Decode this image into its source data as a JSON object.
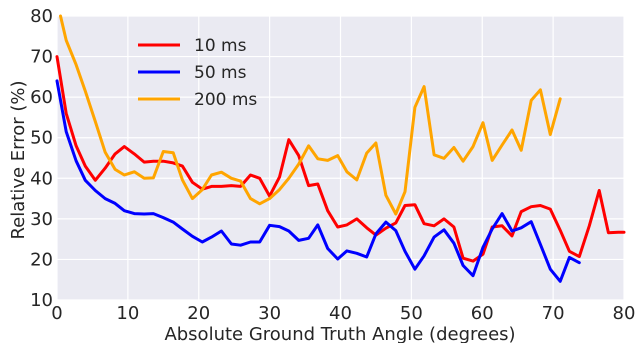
{
  "chart_data": {
    "type": "line",
    "title": "",
    "xlabel": "Absolute Ground Truth Angle (degrees)",
    "ylabel": "Relative Error (%)",
    "xlim": [
      0,
      80
    ],
    "ylim": [
      10,
      80
    ],
    "xticks": [
      0,
      10,
      20,
      30,
      40,
      50,
      60,
      70,
      80
    ],
    "yticks": [
      10,
      20,
      30,
      40,
      50,
      60,
      70,
      80
    ],
    "grid": true,
    "legend_position": "upper-left",
    "series": [
      {
        "name": "10 ms",
        "color": "#ff0000",
        "points": [
          [
            0,
            70
          ],
          [
            1.3,
            56
          ],
          [
            2.7,
            48
          ],
          [
            4,
            43
          ],
          [
            5.4,
            39.5
          ],
          [
            6.8,
            42.5
          ],
          [
            8.2,
            46
          ],
          [
            9.5,
            47.8
          ],
          [
            10.9,
            46
          ],
          [
            12.3,
            44
          ],
          [
            13.6,
            44.2
          ],
          [
            15,
            44.2
          ],
          [
            16.4,
            43.8
          ],
          [
            17.7,
            43
          ],
          [
            19.1,
            39
          ],
          [
            20.5,
            37.3
          ],
          [
            21.8,
            38
          ],
          [
            23.2,
            38
          ],
          [
            24.6,
            38.2
          ],
          [
            25.9,
            38
          ],
          [
            27.3,
            40.8
          ],
          [
            28.6,
            40
          ],
          [
            30,
            35.6
          ],
          [
            31.4,
            40.3
          ],
          [
            32.7,
            49.5
          ],
          [
            34.1,
            45.6
          ],
          [
            35.5,
            38.2
          ],
          [
            36.8,
            38.6
          ],
          [
            38.2,
            32
          ],
          [
            39.6,
            28
          ],
          [
            40.9,
            28.5
          ],
          [
            42.3,
            30
          ],
          [
            43.7,
            27.8
          ],
          [
            45,
            26
          ],
          [
            46.4,
            27.7
          ],
          [
            47.8,
            29
          ],
          [
            49.1,
            33.3
          ],
          [
            50.5,
            33.5
          ],
          [
            51.8,
            28.8
          ],
          [
            53.2,
            28.3
          ],
          [
            54.6,
            30
          ],
          [
            56,
            28
          ],
          [
            57.3,
            20.3
          ],
          [
            58.7,
            19.6
          ],
          [
            60.1,
            21.3
          ],
          [
            61.4,
            28
          ],
          [
            62.8,
            28.3
          ],
          [
            64.2,
            25.8
          ],
          [
            65.5,
            31.8
          ],
          [
            66.9,
            33
          ],
          [
            68.2,
            33.3
          ],
          [
            69.6,
            32.4
          ],
          [
            71,
            27.2
          ],
          [
            72.3,
            22
          ],
          [
            73.7,
            20.7
          ],
          [
            75.1,
            28.3
          ],
          [
            76.5,
            37
          ],
          [
            77.8,
            26.6
          ],
          [
            79.2,
            26.7
          ],
          [
            80,
            26.7
          ]
        ]
      },
      {
        "name": "50 ms",
        "color": "#0000ff",
        "points": [
          [
            0,
            64
          ],
          [
            1.3,
            51.5
          ],
          [
            2.7,
            44.3
          ],
          [
            4,
            39.5
          ],
          [
            5.4,
            37
          ],
          [
            6.8,
            35
          ],
          [
            8.2,
            33.8
          ],
          [
            9.5,
            32
          ],
          [
            10.9,
            31.3
          ],
          [
            12.3,
            31.2
          ],
          [
            13.6,
            31.3
          ],
          [
            15,
            30.3
          ],
          [
            16.4,
            29.2
          ],
          [
            17.7,
            27.5
          ],
          [
            19.1,
            25.7
          ],
          [
            20.5,
            24.3
          ],
          [
            21.8,
            25.5
          ],
          [
            23.2,
            27
          ],
          [
            24.6,
            23.8
          ],
          [
            25.9,
            23.5
          ],
          [
            27.3,
            24.3
          ],
          [
            28.6,
            24.3
          ],
          [
            30,
            28.4
          ],
          [
            31.4,
            28.1
          ],
          [
            32.7,
            27
          ],
          [
            34.1,
            24.7
          ],
          [
            35.5,
            25.2
          ],
          [
            36.8,
            28.5
          ],
          [
            38.2,
            22.7
          ],
          [
            39.6,
            20.1
          ],
          [
            40.9,
            22.1
          ],
          [
            42.3,
            21.5
          ],
          [
            43.7,
            20.6
          ],
          [
            45,
            26.3
          ],
          [
            46.4,
            29.2
          ],
          [
            47.8,
            27.1
          ],
          [
            49.1,
            22
          ],
          [
            50.5,
            17.6
          ],
          [
            51.8,
            20.9
          ],
          [
            53.2,
            25.5
          ],
          [
            54.6,
            27.3
          ],
          [
            56,
            24
          ],
          [
            57.3,
            18.5
          ],
          [
            58.7,
            16
          ],
          [
            60.1,
            23
          ],
          [
            61.4,
            27.5
          ],
          [
            62.8,
            31.3
          ],
          [
            64.2,
            27
          ],
          [
            65.5,
            27.8
          ],
          [
            66.9,
            29.3
          ],
          [
            68.2,
            23.7
          ],
          [
            69.6,
            17.6
          ],
          [
            71,
            14.6
          ],
          [
            72.3,
            20.5
          ],
          [
            73.7,
            19.2
          ]
        ]
      },
      {
        "name": "200 ms",
        "color": "#ffa500",
        "points": [
          [
            0.5,
            80
          ],
          [
            1.3,
            74
          ],
          [
            2.7,
            68
          ],
          [
            4,
            61.5
          ],
          [
            5.4,
            54
          ],
          [
            6.8,
            46.4
          ],
          [
            8.2,
            42.2
          ],
          [
            9.5,
            40.8
          ],
          [
            10.9,
            41.6
          ],
          [
            12.3,
            40
          ],
          [
            13.6,
            40.1
          ],
          [
            15,
            46.6
          ],
          [
            16.4,
            46.3
          ],
          [
            17.7,
            39.6
          ],
          [
            19.1,
            35
          ],
          [
            20.5,
            37.2
          ],
          [
            21.8,
            40.8
          ],
          [
            23.2,
            41.5
          ],
          [
            24.6,
            40
          ],
          [
            25.9,
            39.3
          ],
          [
            27.3,
            35
          ],
          [
            28.6,
            33.7
          ],
          [
            30,
            35
          ],
          [
            31.4,
            37.2
          ],
          [
            32.7,
            40
          ],
          [
            34.1,
            43.5
          ],
          [
            35.5,
            48
          ],
          [
            36.8,
            44.8
          ],
          [
            38.2,
            44.4
          ],
          [
            39.6,
            45.6
          ],
          [
            40.9,
            41.6
          ],
          [
            42.3,
            39.6
          ],
          [
            43.7,
            46.2
          ],
          [
            45,
            48.7
          ],
          [
            46.4,
            35.8
          ],
          [
            47.8,
            31.2
          ],
          [
            49.1,
            36.7
          ],
          [
            50.5,
            57.5
          ],
          [
            51.8,
            62.6
          ],
          [
            53.2,
            45.8
          ],
          [
            54.6,
            44.9
          ],
          [
            56,
            47.6
          ],
          [
            57.3,
            44.2
          ],
          [
            58.7,
            47.8
          ],
          [
            60.1,
            53.7
          ],
          [
            61.4,
            44.4
          ],
          [
            62.8,
            48.2
          ],
          [
            64.2,
            51.9
          ],
          [
            65.5,
            46.9
          ],
          [
            66.9,
            59.2
          ],
          [
            68.2,
            61.8
          ],
          [
            69.6,
            50.8
          ],
          [
            71,
            59.6
          ]
        ]
      }
    ]
  }
}
